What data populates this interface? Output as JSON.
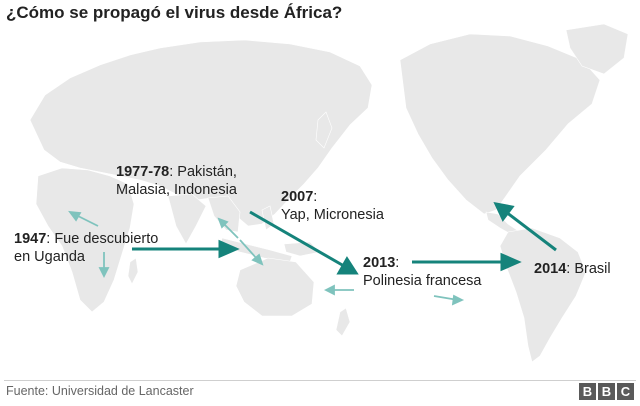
{
  "title": "¿Cómo se propagó el virus desde África?",
  "labels": {
    "uganda": {
      "year": "1947",
      "text_line1": ": Fue descubierto",
      "text_line2": "en Uganda"
    },
    "asia": {
      "year": "1977-78",
      "text_line1": ": Pakistán,",
      "text_line2": "Malasia, Indonesia"
    },
    "yap": {
      "year": "2007",
      "text_line1": ":",
      "text_line2": "Yap, Micronesia"
    },
    "polynesia": {
      "year": "2013",
      "text_line1": ":",
      "text_line2": "Polinesia francesa"
    },
    "brazil": {
      "year": "2014",
      "text_line1": ": Brasil"
    }
  },
  "footer": {
    "source": "Fuente: Universidad de Lancaster",
    "logo_letters": [
      "B",
      "B",
      "C"
    ]
  },
  "colors": {
    "land": "#e8e8e8",
    "arrow_main": "#15837b",
    "arrow_minor": "#7fc3bd",
    "text": "#222222"
  }
}
